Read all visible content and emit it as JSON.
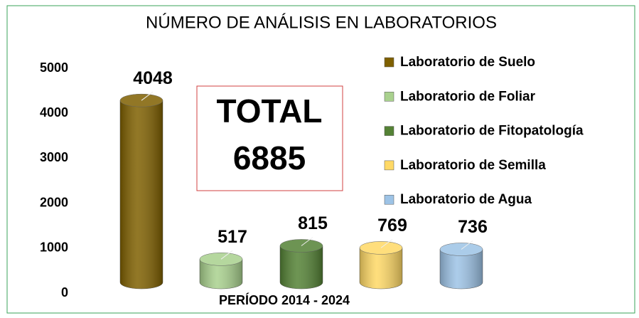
{
  "chart_data": {
    "type": "bar",
    "title": "NÚMERO DE ANÁLISIS EN LABORATORIOS",
    "x_label": "PERÍODO 2014 - 2024",
    "categories": [
      "Laboratorio de Suelo",
      "Laboratorio de Foliar",
      "Laboratorio de Fitopatología",
      "Laboratorio de Semilla",
      "Laboratorio de Agua"
    ],
    "values": [
      4048,
      517,
      815,
      769,
      736
    ],
    "colors": [
      "#7f6000",
      "#a9d18e",
      "#548235",
      "#ffd966",
      "#9dc3e6"
    ],
    "ylim": [
      0,
      5000
    ],
    "yticks": [
      0,
      1000,
      2000,
      3000,
      4000,
      5000
    ],
    "grid": false,
    "legend": "right",
    "annotation": {
      "label": "TOTAL",
      "value": 6885
    }
  }
}
